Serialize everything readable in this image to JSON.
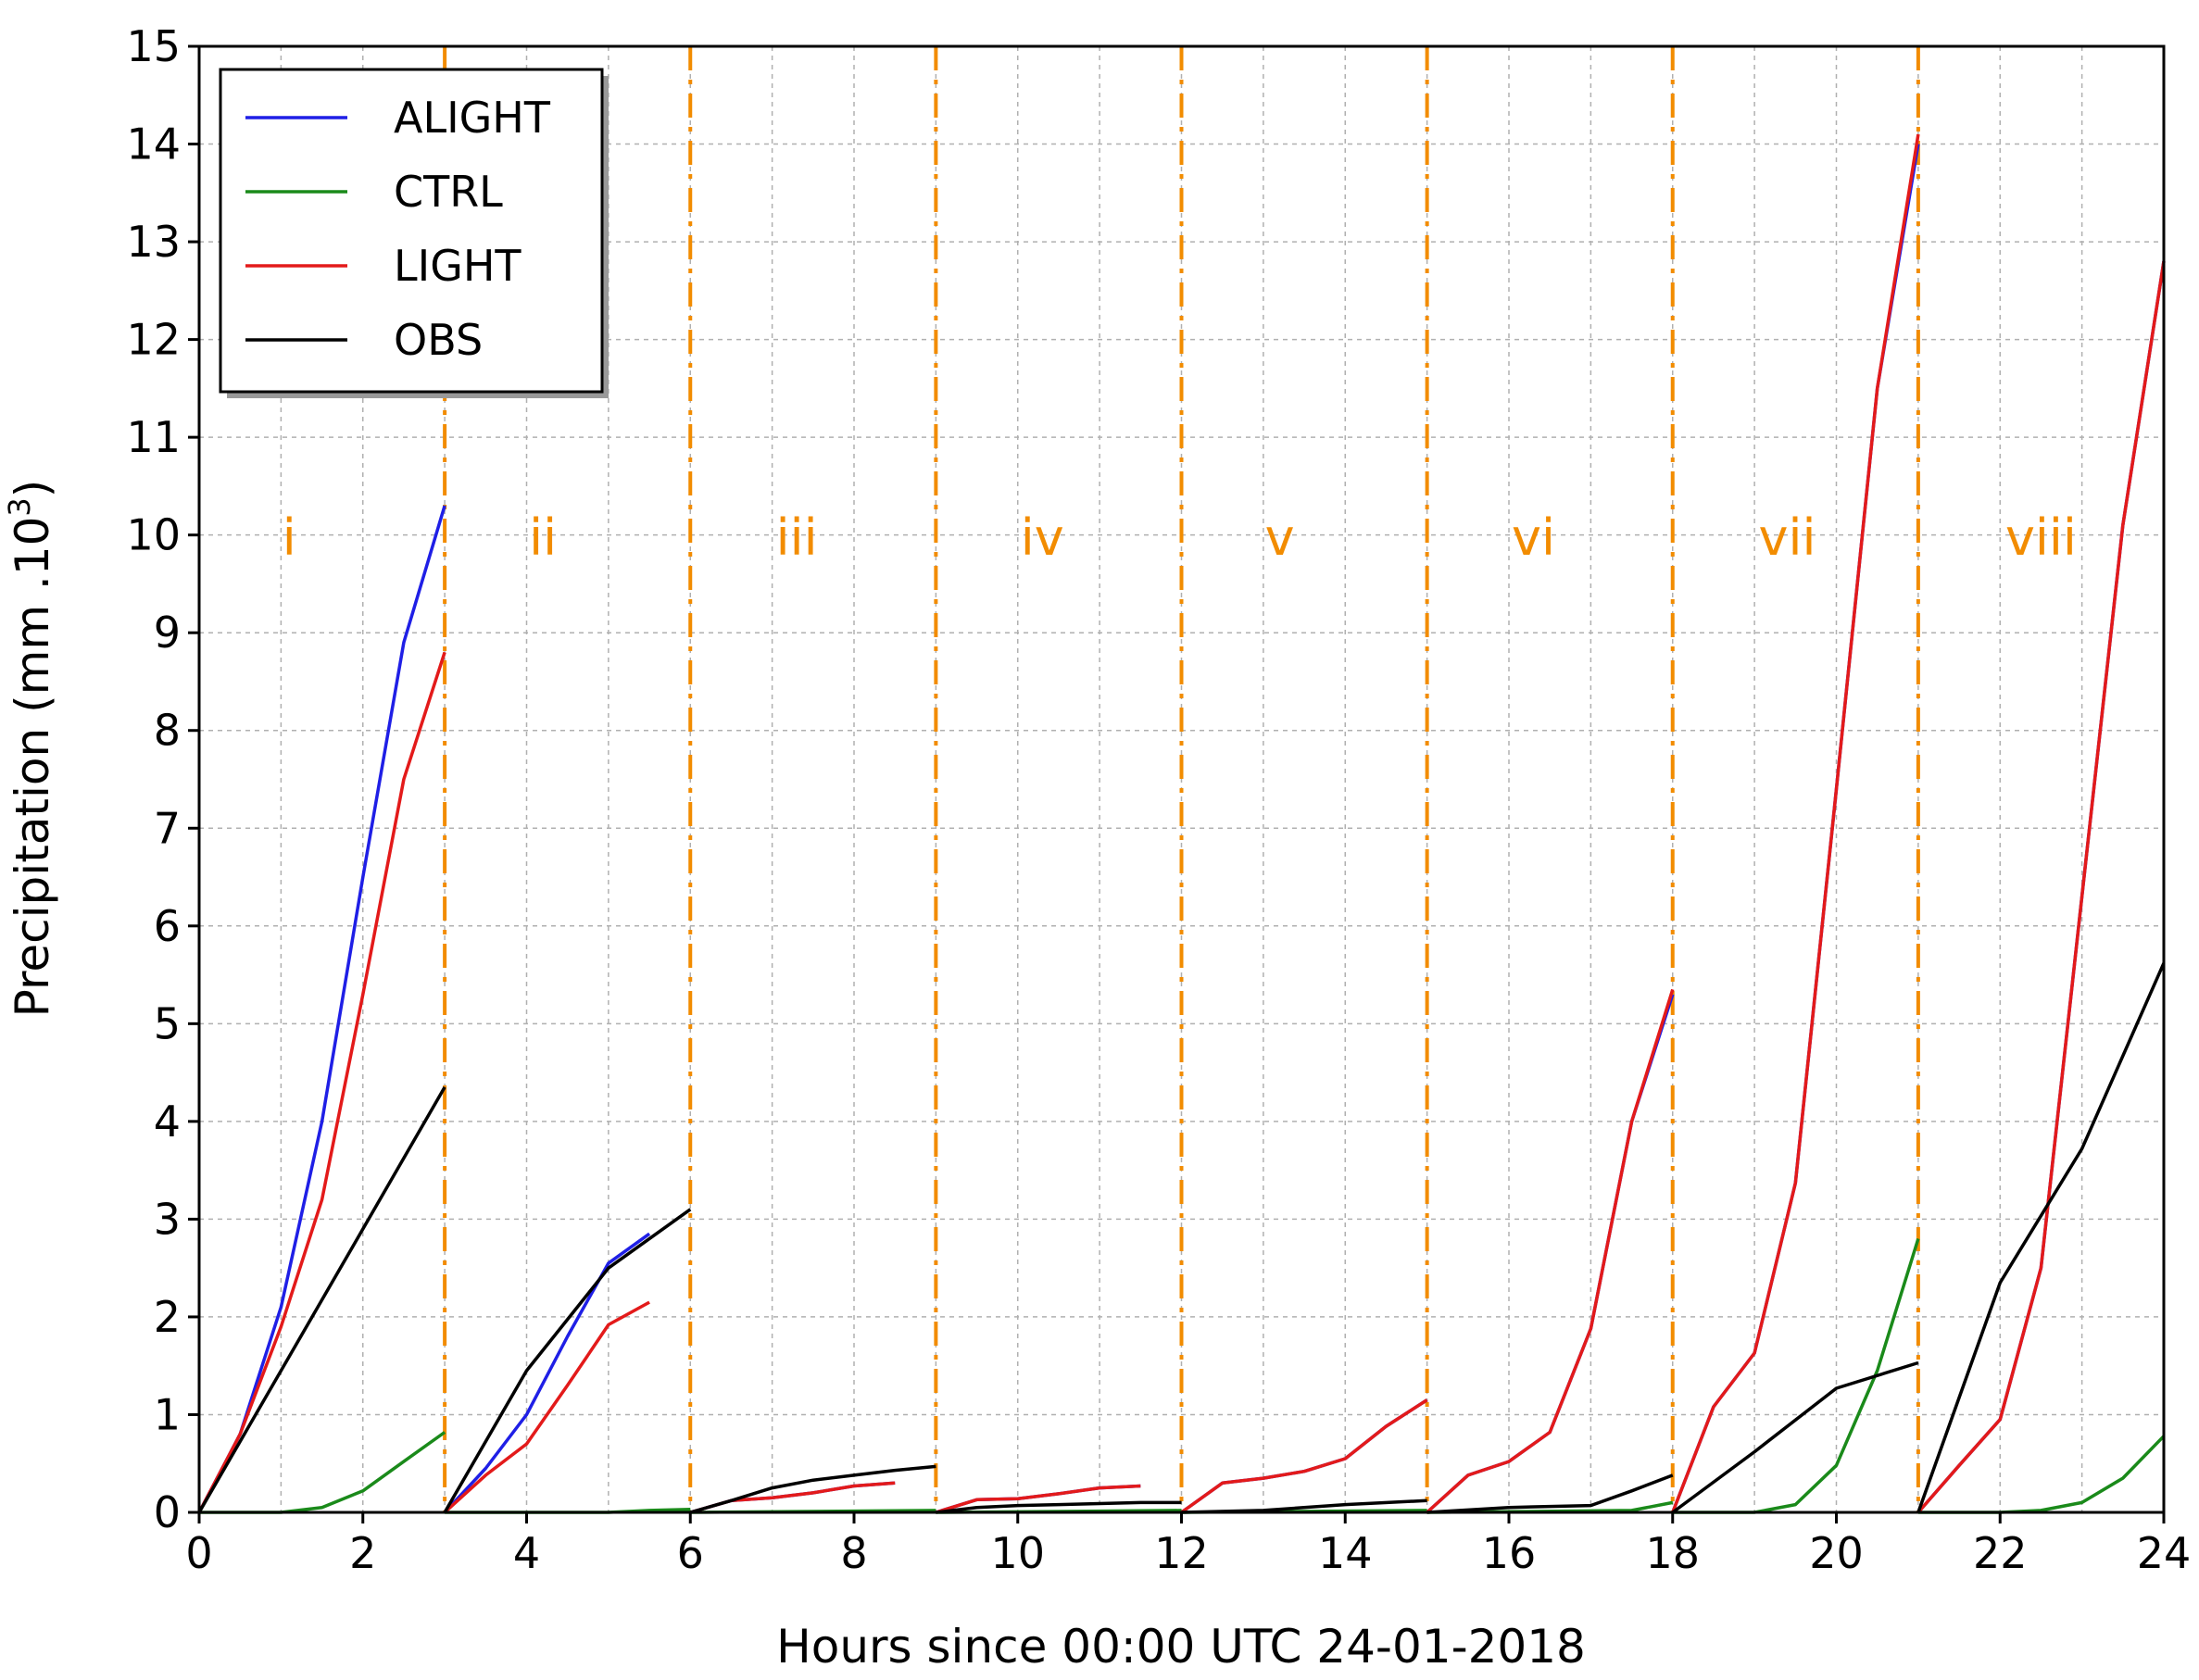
{
  "chart_data": {
    "type": "line",
    "xlabel": "Hours since 00:00 UTC 24-01-2018",
    "ylabel": "Precipitation (mm .10",
    "ylabel_sup": "3",
    "ylabel_close": ")",
    "xlim": [
      0,
      24
    ],
    "ylim": [
      0,
      15
    ],
    "xticks": [
      "0",
      "2",
      "4",
      "6",
      "8",
      "10",
      "12",
      "14",
      "16",
      "18",
      "20",
      "22",
      "24"
    ],
    "yticks": [
      "0",
      "1",
      "2",
      "3",
      "4",
      "5",
      "6",
      "7",
      "8",
      "9",
      "10",
      "11",
      "12",
      "13",
      "14",
      "15"
    ],
    "grid": true,
    "legend_position": "top-left",
    "separators": [
      3,
      6,
      9,
      12,
      15,
      18,
      21
    ],
    "separator_color": "#f28c00",
    "periods": [
      {
        "label": "i",
        "x": 1.1
      },
      {
        "label": "ii",
        "x": 4.2
      },
      {
        "label": "iii",
        "x": 7.3
      },
      {
        "label": "iv",
        "x": 10.3
      },
      {
        "label": "v",
        "x": 13.2
      },
      {
        "label": "vi",
        "x": 16.3
      },
      {
        "label": "vii",
        "x": 19.4
      },
      {
        "label": "viii",
        "x": 22.5
      }
    ],
    "series": [
      {
        "name": "ALIGHT",
        "color": "#1f1fe6",
        "segments": [
          [
            [
              0,
              0
            ],
            [
              0.5,
              0.8
            ],
            [
              1,
              2.1
            ],
            [
              1.5,
              4.0
            ],
            [
              2,
              6.5
            ],
            [
              2.5,
              8.9
            ],
            [
              3,
              10.3
            ]
          ],
          [
            [
              3,
              0
            ],
            [
              3.5,
              0.45
            ],
            [
              4,
              1.0
            ],
            [
              4.5,
              1.8
            ],
            [
              5,
              2.55
            ],
            [
              5.5,
              2.85
            ]
          ],
          [
            [
              6,
              0
            ],
            [
              6.5,
              0.12
            ],
            [
              7,
              0.15
            ],
            [
              7.5,
              0.2
            ],
            [
              8,
              0.27
            ],
            [
              8.5,
              0.3
            ]
          ],
          [
            [
              9,
              0
            ],
            [
              9.5,
              0.13
            ],
            [
              10,
              0.14
            ],
            [
              10.5,
              0.19
            ],
            [
              11,
              0.25
            ],
            [
              11.5,
              0.27
            ]
          ],
          [
            [
              12,
              0
            ],
            [
              12.5,
              0.3
            ],
            [
              13,
              0.35
            ],
            [
              13.5,
              0.42
            ],
            [
              14,
              0.55
            ],
            [
              14.5,
              0.88
            ],
            [
              15,
              1.15
            ]
          ],
          [
            [
              15,
              0
            ],
            [
              15.5,
              0.38
            ],
            [
              16,
              0.52
            ],
            [
              16.5,
              0.82
            ],
            [
              17,
              1.88
            ],
            [
              17.5,
              4.0
            ],
            [
              18,
              5.3
            ]
          ],
          [
            [
              18,
              0
            ],
            [
              18.5,
              1.08
            ],
            [
              19,
              1.63
            ],
            [
              19.5,
              3.37
            ],
            [
              20,
              7.4
            ],
            [
              20.5,
              11.5
            ],
            [
              21,
              14.0
            ]
          ],
          [
            [
              21,
              0
            ],
            [
              21.5,
              0.48
            ],
            [
              22,
              0.95
            ],
            [
              22.5,
              2.5
            ],
            [
              23,
              6.3
            ],
            [
              23.5,
              10.1
            ],
            [
              24,
              12.8
            ]
          ]
        ]
      },
      {
        "name": "CTRL",
        "color": "#1a8a1a",
        "segments": [
          [
            [
              0,
              0
            ],
            [
              0.5,
              0
            ],
            [
              1,
              0
            ],
            [
              1.5,
              0.05
            ],
            [
              2,
              0.22
            ],
            [
              2.5,
              0.52
            ],
            [
              3,
              0.82
            ]
          ],
          [
            [
              3,
              0
            ],
            [
              4,
              0
            ],
            [
              5,
              0
            ],
            [
              5.5,
              0.02
            ],
            [
              6,
              0.03
            ]
          ],
          [
            [
              6,
              0
            ],
            [
              9,
              0.02
            ]
          ],
          [
            [
              9,
              0
            ],
            [
              12,
              0.02
            ]
          ],
          [
            [
              12,
              0
            ],
            [
              15,
              0.02
            ]
          ],
          [
            [
              15,
              0
            ],
            [
              17.5,
              0.02
            ],
            [
              18,
              0.1
            ]
          ],
          [
            [
              18,
              0
            ],
            [
              19,
              0
            ],
            [
              19.5,
              0.08
            ],
            [
              20,
              0.48
            ],
            [
              20.5,
              1.45
            ],
            [
              21,
              2.8
            ]
          ],
          [
            [
              21,
              0
            ],
            [
              22,
              0
            ],
            [
              22.5,
              0.02
            ],
            [
              23,
              0.1
            ],
            [
              23.5,
              0.35
            ],
            [
              24,
              0.78
            ]
          ]
        ]
      },
      {
        "name": "LIGHT",
        "color": "#e31a1a",
        "segments": [
          [
            [
              0,
              0
            ],
            [
              0.5,
              0.8
            ],
            [
              1,
              1.9
            ],
            [
              1.5,
              3.2
            ],
            [
              2,
              5.3
            ],
            [
              2.5,
              7.5
            ],
            [
              3,
              8.8
            ]
          ],
          [
            [
              3,
              0
            ],
            [
              3.5,
              0.38
            ],
            [
              4,
              0.7
            ],
            [
              4.5,
              1.3
            ],
            [
              5,
              1.92
            ],
            [
              5.5,
              2.15
            ]
          ],
          [
            [
              6,
              0
            ],
            [
              6.5,
              0.12
            ],
            [
              7,
              0.15
            ],
            [
              7.5,
              0.2
            ],
            [
              8,
              0.27
            ],
            [
              8.5,
              0.3
            ]
          ],
          [
            [
              9,
              0
            ],
            [
              9.5,
              0.13
            ],
            [
              10,
              0.14
            ],
            [
              10.5,
              0.19
            ],
            [
              11,
              0.25
            ],
            [
              11.5,
              0.27
            ]
          ],
          [
            [
              12,
              0
            ],
            [
              12.5,
              0.3
            ],
            [
              13,
              0.35
            ],
            [
              13.5,
              0.42
            ],
            [
              14,
              0.55
            ],
            [
              14.5,
              0.88
            ],
            [
              15,
              1.15
            ]
          ],
          [
            [
              15,
              0
            ],
            [
              15.5,
              0.38
            ],
            [
              16,
              0.52
            ],
            [
              16.5,
              0.82
            ],
            [
              17,
              1.88
            ],
            [
              17.5,
              4.0
            ],
            [
              18,
              5.35
            ]
          ],
          [
            [
              18,
              0
            ],
            [
              18.5,
              1.08
            ],
            [
              19,
              1.63
            ],
            [
              19.5,
              3.37
            ],
            [
              20,
              7.4
            ],
            [
              20.5,
              11.5
            ],
            [
              21,
              14.1
            ]
          ],
          [
            [
              21,
              0
            ],
            [
              21.5,
              0.48
            ],
            [
              22,
              0.95
            ],
            [
              22.5,
              2.5
            ],
            [
              23,
              6.3
            ],
            [
              23.5,
              10.1
            ],
            [
              24,
              12.8
            ]
          ]
        ]
      },
      {
        "name": "OBS",
        "color": "#000000",
        "segments": [
          [
            [
              0,
              0
            ],
            [
              1,
              1.45
            ],
            [
              2,
              2.9
            ],
            [
              3,
              4.35
            ]
          ],
          [
            [
              3,
              0
            ],
            [
              4,
              1.45
            ],
            [
              5,
              2.5
            ],
            [
              6,
              3.1
            ]
          ],
          [
            [
              6,
              0
            ],
            [
              6.5,
              0.12
            ],
            [
              7,
              0.25
            ],
            [
              7.5,
              0.33
            ],
            [
              8,
              0.38
            ],
            [
              8.5,
              0.43
            ],
            [
              9,
              0.47
            ]
          ],
          [
            [
              9,
              0
            ],
            [
              9.5,
              0.05
            ],
            [
              10,
              0.07
            ],
            [
              10.5,
              0.08
            ],
            [
              11,
              0.09
            ],
            [
              11.5,
              0.1
            ],
            [
              12,
              0.1
            ]
          ],
          [
            [
              12,
              0
            ],
            [
              13,
              0.02
            ],
            [
              14,
              0.08
            ],
            [
              15,
              0.12
            ]
          ],
          [
            [
              15,
              0
            ],
            [
              16,
              0.05
            ],
            [
              17,
              0.07
            ],
            [
              17.5,
              0.22
            ],
            [
              18,
              0.38
            ]
          ],
          [
            [
              18,
              0
            ],
            [
              19,
              0.62
            ],
            [
              20,
              1.27
            ],
            [
              21,
              1.53
            ]
          ],
          [
            [
              21,
              0
            ],
            [
              22,
              2.35
            ],
            [
              23,
              3.72
            ],
            [
              24,
              5.62
            ]
          ]
        ]
      }
    ]
  }
}
